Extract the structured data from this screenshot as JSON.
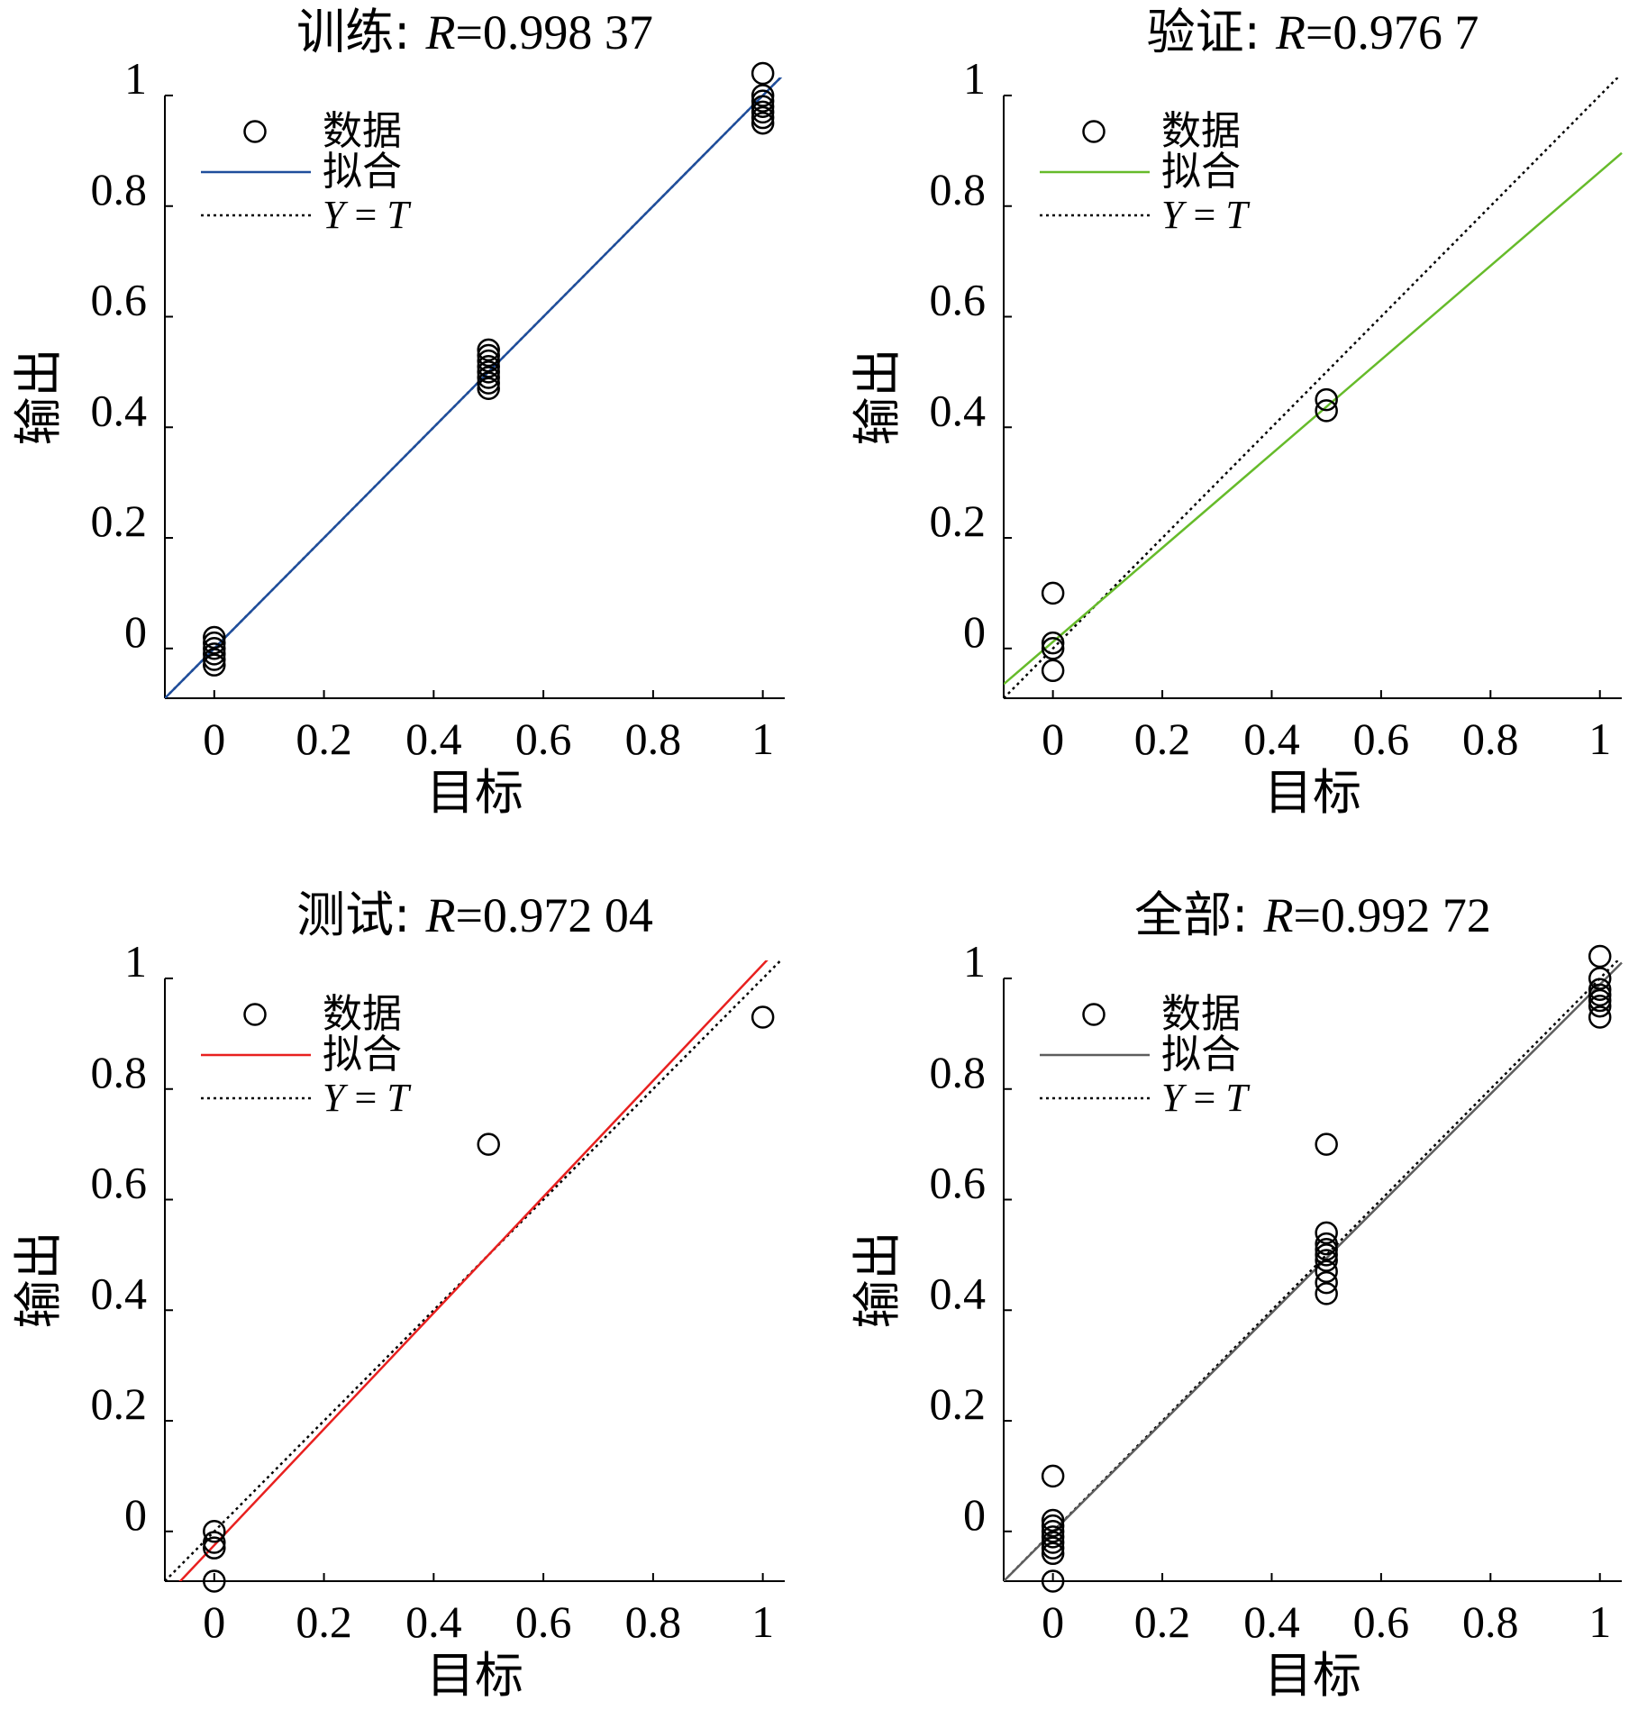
{
  "chart_data": [
    {
      "type": "scatter",
      "title_prefix": "训练: ",
      "title_r": "R",
      "title_value": "=0.998 37",
      "xlabel": "目标",
      "ylabel": "输出",
      "xlim": [
        -0.09,
        1.04
      ],
      "ylim": [
        -0.09,
        1.0
      ],
      "xticks": [
        0,
        0.2,
        0.4,
        0.6,
        0.8,
        1
      ],
      "xtick_labels": [
        "0",
        "0.2",
        "0.4",
        "0.6",
        "0.8",
        "1"
      ],
      "yticks": [
        0,
        0.2,
        0.4,
        0.6,
        0.8,
        1
      ],
      "ytick_labels": [
        "0",
        "0.2",
        "0.4",
        "0.6",
        "0.8",
        "1"
      ],
      "grid": false,
      "legend_position": "top-left",
      "legend": {
        "data": "数据",
        "fit": "拟合",
        "identity_y": "Y",
        "identity_eq": " = ",
        "identity_t": "T"
      },
      "fit_color": "#1f4e9c",
      "fit": {
        "slope": 1.0,
        "intercept": 0.0
      },
      "points": [
        [
          0,
          -0.03
        ],
        [
          0,
          -0.02
        ],
        [
          0,
          -0.01
        ],
        [
          0,
          0.0
        ],
        [
          0,
          0.01
        ],
        [
          0,
          0.02
        ],
        [
          0.5,
          0.47
        ],
        [
          0.5,
          0.48
        ],
        [
          0.5,
          0.49
        ],
        [
          0.5,
          0.5
        ],
        [
          0.5,
          0.51
        ],
        [
          0.5,
          0.52
        ],
        [
          0.5,
          0.53
        ],
        [
          0.5,
          0.54
        ],
        [
          1,
          0.95
        ],
        [
          1,
          0.96
        ],
        [
          1,
          0.97
        ],
        [
          1,
          0.98
        ],
        [
          1,
          0.99
        ],
        [
          1,
          1.0
        ],
        [
          1,
          1.04
        ]
      ]
    },
    {
      "type": "scatter",
      "title_prefix": "验证: ",
      "title_r": "R",
      "title_value": "=0.976 7",
      "xlabel": "目标",
      "ylabel": "输出",
      "xlim": [
        -0.09,
        1.04
      ],
      "ylim": [
        -0.09,
        1.0
      ],
      "xticks": [
        0,
        0.2,
        0.4,
        0.6,
        0.8,
        1
      ],
      "xtick_labels": [
        "0",
        "0.2",
        "0.4",
        "0.6",
        "0.8",
        "1"
      ],
      "yticks": [
        0,
        0.2,
        0.4,
        0.6,
        0.8,
        1
      ],
      "ytick_labels": [
        "0",
        "0.2",
        "0.4",
        "0.6",
        "0.8",
        "1"
      ],
      "grid": false,
      "legend_position": "top-left",
      "legend": {
        "data": "数据",
        "fit": "拟合",
        "identity_y": "Y",
        "identity_eq": " = ",
        "identity_t": "T"
      },
      "fit_color": "#66bb2a",
      "fit": {
        "slope": 0.85,
        "intercept": 0.012
      },
      "points": [
        [
          0,
          -0.04
        ],
        [
          0,
          0.0
        ],
        [
          0,
          0.01
        ],
        [
          0,
          0.1
        ],
        [
          0.5,
          0.43
        ],
        [
          0.5,
          0.45
        ]
      ]
    },
    {
      "type": "scatter",
      "title_prefix": "测试: ",
      "title_r": "R",
      "title_value": "=0.972 04",
      "xlabel": "目标",
      "ylabel": "输出",
      "xlim": [
        -0.09,
        1.04
      ],
      "ylim": [
        -0.09,
        1.0
      ],
      "xticks": [
        0,
        0.2,
        0.4,
        0.6,
        0.8,
        1
      ],
      "xtick_labels": [
        "0",
        "0.2",
        "0.4",
        "0.6",
        "0.8",
        "1"
      ],
      "yticks": [
        0,
        0.2,
        0.4,
        0.6,
        0.8,
        1
      ],
      "ytick_labels": [
        "0",
        "0.2",
        "0.4",
        "0.6",
        "0.8",
        "1"
      ],
      "grid": false,
      "legend_position": "top-left",
      "legend": {
        "data": "数据",
        "fit": "拟合",
        "identity_y": "Y",
        "identity_eq": " = ",
        "identity_t": "T"
      },
      "fit_color": "#e8201f",
      "fit": {
        "slope": 1.05,
        "intercept": -0.025
      },
      "points": [
        [
          0,
          -0.09
        ],
        [
          0,
          -0.03
        ],
        [
          0,
          -0.02
        ],
        [
          0,
          0.0
        ],
        [
          0.5,
          0.7
        ],
        [
          1,
          0.93
        ]
      ]
    },
    {
      "type": "scatter",
      "title_prefix": "全部: ",
      "title_r": "R",
      "title_value": "=0.992 72",
      "xlabel": "目标",
      "ylabel": "输出",
      "xlim": [
        -0.09,
        1.04
      ],
      "ylim": [
        -0.09,
        1.0
      ],
      "xticks": [
        0,
        0.2,
        0.4,
        0.6,
        0.8,
        1
      ],
      "xtick_labels": [
        "0",
        "0.2",
        "0.4",
        "0.6",
        "0.8",
        "1"
      ],
      "yticks": [
        0,
        0.2,
        0.4,
        0.6,
        0.8,
        1
      ],
      "ytick_labels": [
        "0",
        "0.2",
        "0.4",
        "0.6",
        "0.8",
        "1"
      ],
      "grid": false,
      "legend_position": "top-left",
      "legend": {
        "data": "数据",
        "fit": "拟合",
        "identity_y": "Y",
        "identity_eq": " = ",
        "identity_t": "T"
      },
      "fit_color": "#5e5e5e",
      "fit": {
        "slope": 0.99,
        "intercept": -0.001
      },
      "points": [
        [
          0,
          -0.09
        ],
        [
          0,
          -0.04
        ],
        [
          0,
          -0.03
        ],
        [
          0,
          -0.02
        ],
        [
          0,
          -0.01
        ],
        [
          0,
          0.0
        ],
        [
          0,
          0.01
        ],
        [
          0,
          0.02
        ],
        [
          0,
          0.1
        ],
        [
          0.5,
          0.43
        ],
        [
          0.5,
          0.45
        ],
        [
          0.5,
          0.47
        ],
        [
          0.5,
          0.49
        ],
        [
          0.5,
          0.5
        ],
        [
          0.5,
          0.51
        ],
        [
          0.5,
          0.52
        ],
        [
          0.5,
          0.54
        ],
        [
          0.5,
          0.7
        ],
        [
          1,
          0.93
        ],
        [
          1,
          0.95
        ],
        [
          1,
          0.96
        ],
        [
          1,
          0.97
        ],
        [
          1,
          0.98
        ],
        [
          1,
          1.0
        ],
        [
          1,
          1.04
        ]
      ]
    }
  ]
}
